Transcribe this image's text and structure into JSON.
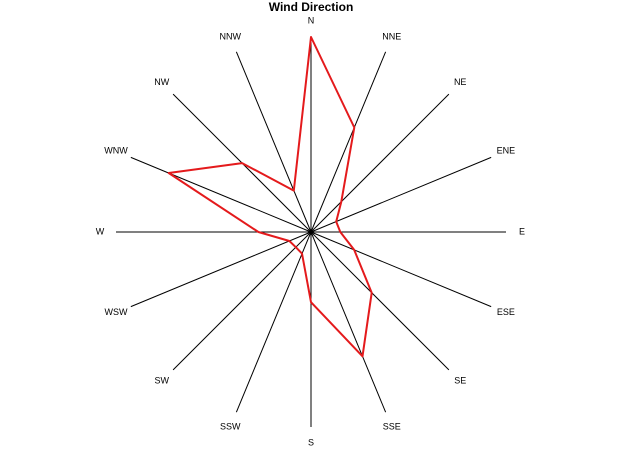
{
  "chart_data": {
    "type": "radar",
    "title": "Wind Direction",
    "categories": [
      "N",
      "NNE",
      "NE",
      "ENE",
      "E",
      "ESE",
      "SE",
      "SSE",
      "S",
      "SSW",
      "SW",
      "WSW",
      "W",
      "WNW",
      "NW",
      "NNW"
    ],
    "values": [
      1.0,
      0.58,
      0.22,
      0.14,
      0.15,
      0.24,
      0.44,
      0.69,
      0.36,
      0.12,
      0.11,
      0.12,
      0.27,
      0.79,
      0.5,
      0.23
    ],
    "color": "#e41a1c",
    "ylim": [
      0,
      1
    ]
  }
}
